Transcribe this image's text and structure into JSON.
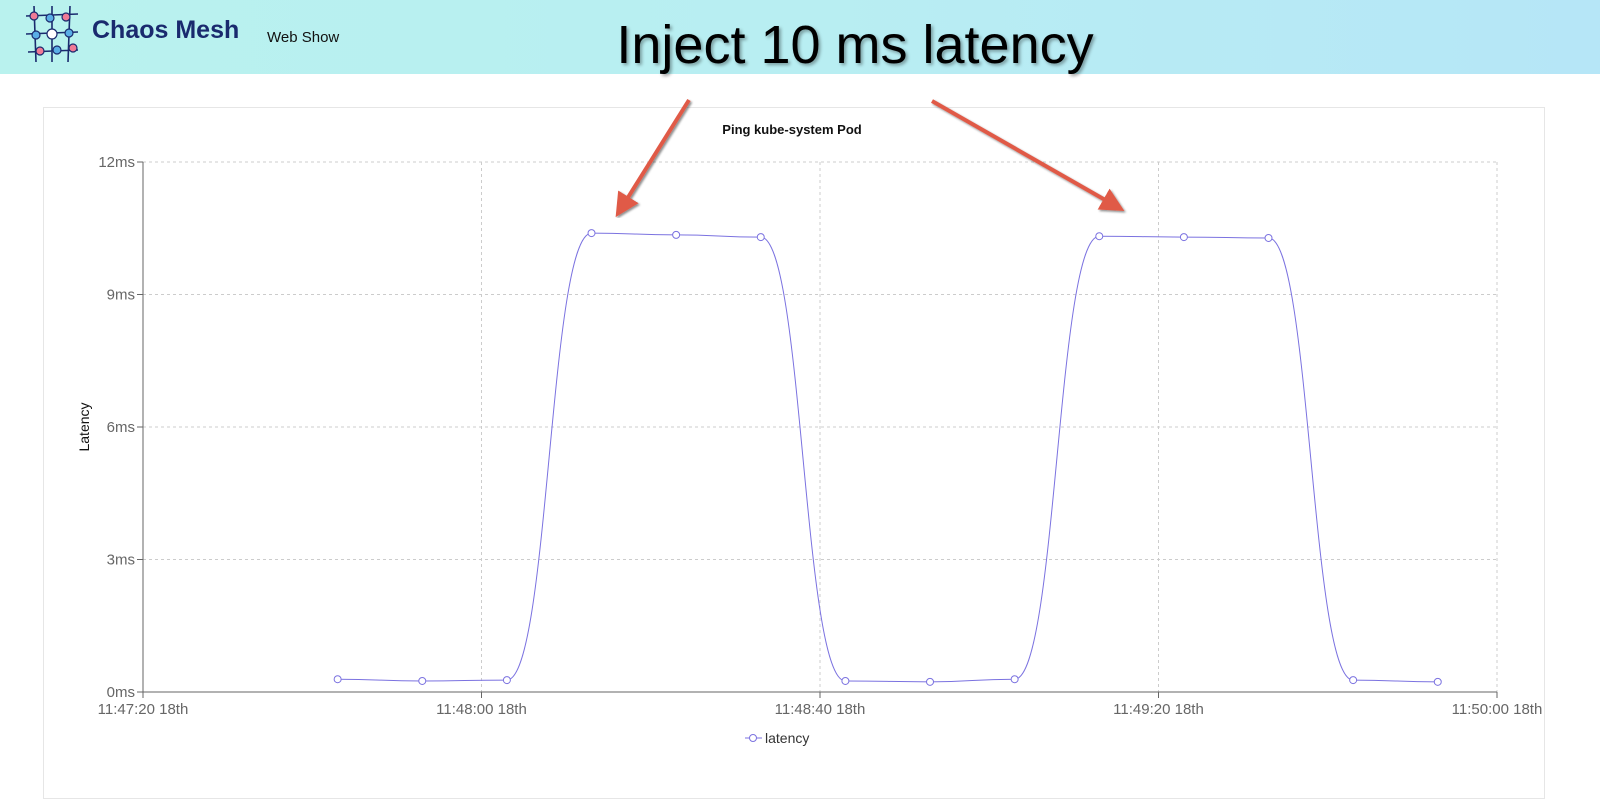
{
  "header": {
    "brand": "Chaos Mesh",
    "subtitle": "Web Show",
    "headline": "Inject 10 ms latency",
    "background_colors": [
      "#b9f2ee",
      "#b6e6f7"
    ]
  },
  "annotation": {
    "arrow_color": "#e05a47",
    "arrow_count": 2
  },
  "chart_data": {
    "type": "line",
    "title": "Ping kube-system Pod",
    "xlabel": "",
    "ylabel": "Latency",
    "x_ticks": [
      "11:47:20 18th",
      "11:48:00 18th",
      "11:48:40 18th",
      "11:49:20 18th",
      "11:50:00 18th"
    ],
    "x_range": [
      "11:47:20",
      "11:50:00"
    ],
    "y_ticks": [
      "0ms",
      "3ms",
      "6ms",
      "9ms",
      "12ms"
    ],
    "ylim": [
      0,
      12
    ],
    "y_unit": "ms",
    "grid": true,
    "legend_position": "bottom",
    "series": [
      {
        "name": "latency",
        "color": "#7b72e0",
        "x": [
          "11:47:43",
          "11:47:53",
          "11:48:03",
          "11:48:13",
          "11:48:23",
          "11:48:33",
          "11:48:43",
          "11:48:53",
          "11:49:03",
          "11:49:13",
          "11:49:23",
          "11:49:33",
          "11:49:43",
          "11:49:53"
        ],
        "y": [
          0.29,
          0.25,
          0.27,
          10.39,
          10.35,
          10.3,
          0.25,
          0.23,
          0.29,
          10.32,
          10.3,
          10.28,
          0.27,
          0.23
        ]
      }
    ]
  }
}
